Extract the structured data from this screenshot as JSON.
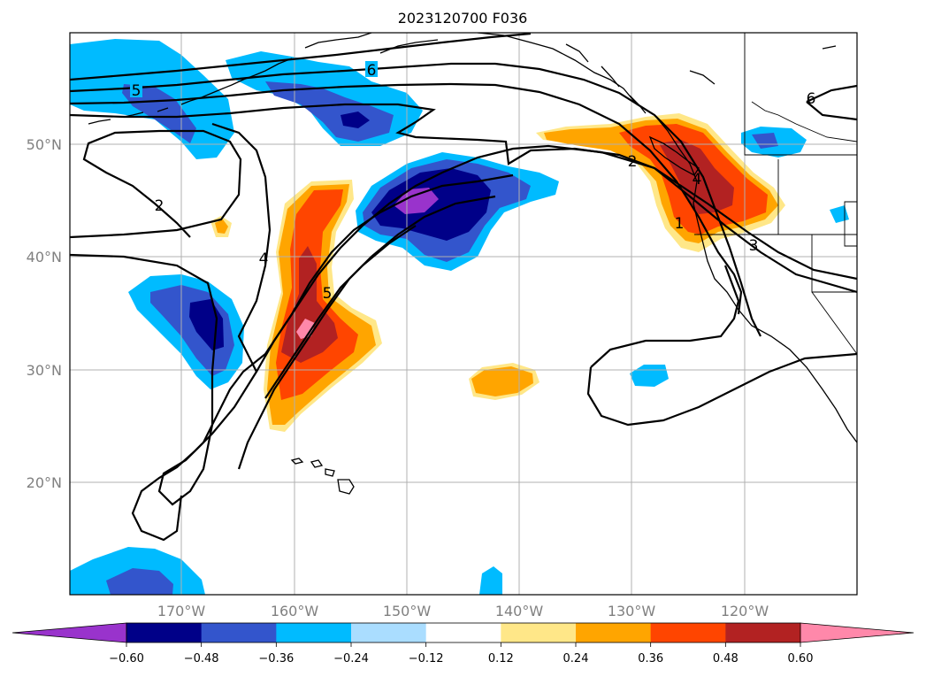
{
  "title": "2023120700 F036",
  "lat_labels": [
    "50°N",
    "40°N",
    "30°N",
    "20°N"
  ],
  "lon_labels": [
    "170°W",
    "160°W",
    "150°W",
    "140°W",
    "130°W",
    "120°W"
  ],
  "colorbar": {
    "ticks": [
      "−0.60",
      "−0.48",
      "−0.36",
      "−0.24",
      "−0.12",
      "0.12",
      "0.24",
      "0.36",
      "0.48",
      "0.60"
    ],
    "colors": [
      "#9933cc",
      "#000088",
      "#3355cc",
      "#00bbff",
      "#aaddff",
      "#ffffff",
      "#ffe788",
      "#ffa500",
      "#ff4500",
      "#b22222",
      "#ff88aa"
    ]
  },
  "contour_labels": [
    "5",
    "6",
    "2",
    "4",
    "5",
    "2",
    "1",
    "4",
    "3",
    "6"
  ]
}
